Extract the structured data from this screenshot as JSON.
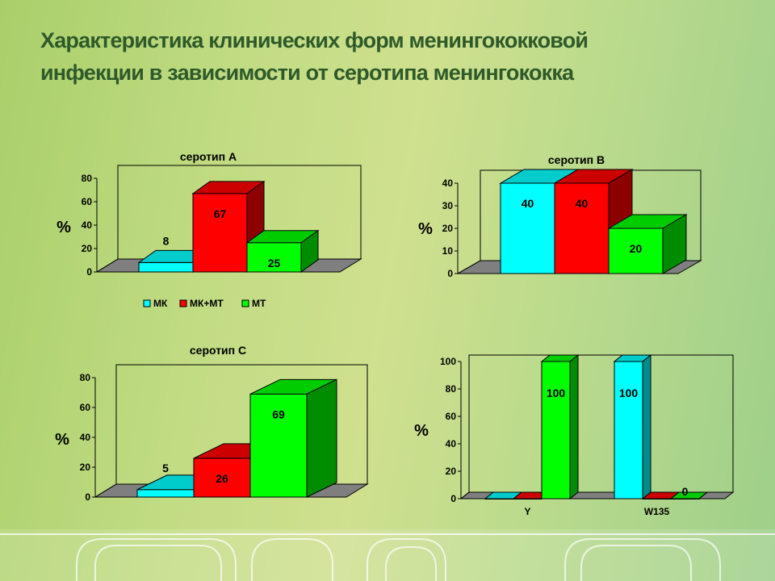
{
  "title": {
    "line1": "Характеристика клинических форм менингококковой",
    "line2": "инфекции в зависимости от серотипа менингококка"
  },
  "colors": {
    "mk": "#00ffff",
    "mk_mt": "#ff0000",
    "mt": "#00ff00",
    "floor": "#7f7f7f"
  },
  "chart_data": [
    {
      "id": "chart-a",
      "type": "bar",
      "title": "серотип А",
      "ylabel": "%",
      "xlabel": "",
      "ylim": [
        0,
        80
      ],
      "yticks": [
        0,
        20,
        40,
        60,
        80
      ],
      "grid": false,
      "categories": [
        ""
      ],
      "series": [
        {
          "name": "МК",
          "color": "#00ffff",
          "values": [
            8
          ],
          "labels": [
            "8"
          ]
        },
        {
          "name": "МК+МТ",
          "color": "#ff0000",
          "values": [
            67
          ],
          "labels": [
            "67"
          ]
        },
        {
          "name": "МТ",
          "color": "#00ff00",
          "values": [
            25
          ],
          "labels": [
            "25"
          ]
        }
      ],
      "legend": "bottom"
    },
    {
      "id": "chart-b",
      "type": "bar",
      "title": "серотип В",
      "ylabel": "%",
      "xlabel": "",
      "ylim": [
        0,
        40
      ],
      "yticks": [
        0,
        10,
        20,
        30,
        40
      ],
      "grid": false,
      "categories": [
        ""
      ],
      "series": [
        {
          "color": "#00ffff",
          "values": [
            40
          ],
          "labels": [
            "40"
          ]
        },
        {
          "color": "#ff0000",
          "values": [
            40
          ],
          "labels": [
            "40"
          ]
        },
        {
          "color": "#00ff00",
          "values": [
            20
          ],
          "labels": [
            "20"
          ]
        }
      ]
    },
    {
      "id": "chart-c",
      "type": "bar",
      "title": "серотип С",
      "ylabel": "%",
      "xlabel": "",
      "ylim": [
        0,
        80
      ],
      "yticks": [
        0,
        20,
        40,
        60,
        80
      ],
      "grid": false,
      "categories": [
        ""
      ],
      "series": [
        {
          "color": "#00ffff",
          "values": [
            5
          ],
          "labels": [
            "5"
          ]
        },
        {
          "color": "#ff0000",
          "values": [
            26
          ],
          "labels": [
            "26"
          ]
        },
        {
          "color": "#00ff00",
          "values": [
            69
          ],
          "labels": [
            "69"
          ]
        }
      ]
    },
    {
      "id": "chart-d",
      "type": "bar",
      "title": "",
      "ylabel": "%",
      "xlabel": "",
      "ylim": [
        0,
        100
      ],
      "yticks": [
        0,
        20,
        40,
        60,
        80,
        100
      ],
      "grid": false,
      "categories": [
        "Y",
        "W135"
      ],
      "series": [
        {
          "color": "#00ffff",
          "values": [
            0,
            100
          ],
          "labels": [
            "",
            "100"
          ]
        },
        {
          "color": "#ff0000",
          "values": [
            0,
            0
          ],
          "labels": [
            "",
            ""
          ]
        },
        {
          "color": "#00ff00",
          "values": [
            100,
            0
          ],
          "labels": [
            "100",
            "0"
          ]
        }
      ]
    }
  ]
}
